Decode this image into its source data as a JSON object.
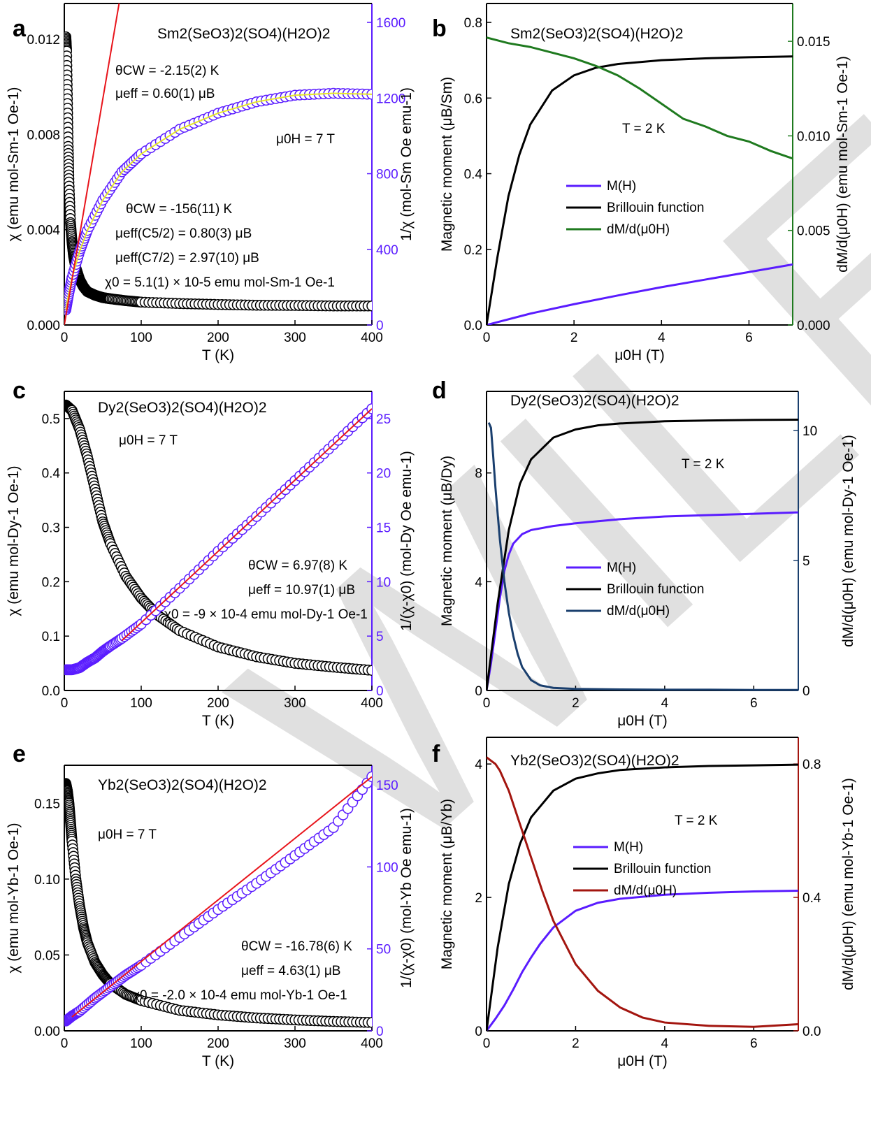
{
  "colors": {
    "chi": "#000000",
    "inv": "#5a1cff",
    "fit_red": "#e8141b",
    "fit_yellow": "#e6e62a",
    "sm_green": "#1f7a1f",
    "dy_navy": "#1a3f6e",
    "yb_red": "#a3150f",
    "watermark": "#c8c8c8"
  },
  "watermark_text": "WILEY-VCH",
  "chart_data": [
    {
      "panel": "a",
      "type": "scatter",
      "title": "Sm2(SeO3)2(SO4)(H2O)2",
      "xlabel": "T (K)",
      "xlim": [
        0,
        400
      ],
      "xticks": [
        0,
        100,
        200,
        300,
        400
      ],
      "ylabel_left": "χ (emu mol-Sm-1 Oe-1)",
      "ylim_left": [
        0,
        0.0135
      ],
      "yticks_left": [
        "0.000",
        "0.004",
        "0.008",
        "0.012"
      ],
      "ylabel_right": "1/χ (mol-Sm Oe emu-1)",
      "ylim_right": [
        0,
        1700
      ],
      "yticks_right": [
        "0",
        "400",
        "800",
        "1200",
        "1600"
      ],
      "annotations": [
        "μ0H = 7 T",
        "θCW = -2.15(2) K",
        "μeff = 0.60(1) μB",
        "θCW = -156(11) K",
        "μeff(C5/2) = 0.80(3) μB",
        "μeff(C7/2) = 2.97(10) μB",
        "χ0 = 5.1(1) × 10-5 emu mol-Sm-1 Oe-1"
      ],
      "series": [
        {
          "axis": "left",
          "x": [
            2,
            3,
            4,
            5,
            6,
            8,
            10,
            12,
            15,
            20,
            25,
            30,
            40,
            50,
            60,
            80,
            100,
            150,
            200,
            250,
            300,
            350,
            400
          ],
          "values": [
            0.0121,
            0.0115,
            0.0095,
            0.0075,
            0.006,
            0.0043,
            0.0035,
            0.0029,
            0.0024,
            0.0019,
            0.0016,
            0.0014,
            0.00125,
            0.00115,
            0.0011,
            0.00102,
            0.00096,
            0.0009,
            0.00086,
            0.00083,
            0.00082,
            0.0008,
            0.0008
          ]
        },
        {
          "axis": "right",
          "x": [
            2,
            5,
            10,
            20,
            30,
            50,
            75,
            100,
            150,
            200,
            250,
            300,
            350,
            400
          ],
          "values": [
            80,
            150,
            250,
            390,
            500,
            660,
            810,
            905,
            1035,
            1120,
            1180,
            1215,
            1225,
            1220
          ]
        },
        {
          "axis": "right",
          "kind": "fit",
          "x": [
            0,
            75
          ],
          "values": [
            0,
            1790
          ]
        }
      ]
    },
    {
      "panel": "b",
      "type": "line",
      "title": "Sm2(SeO3)2(SO4)(H2O)2",
      "xlabel": "μ0H (T)",
      "xlim": [
        0,
        7
      ],
      "xticks": [
        0,
        2,
        4,
        6
      ],
      "ylabel_left": "Magnetic moment (μB/Sm)",
      "ylim_left": [
        0,
        0.85
      ],
      "yticks_left": [
        "0.0",
        "0.2",
        "0.4",
        "0.6",
        "0.8"
      ],
      "ylabel_right": "dM/d(μ0H) (emu mol-Sm-1 Oe-1)",
      "ylim_right": [
        0,
        0.017
      ],
      "yticks_right": [
        "0.000",
        "0.005",
        "0.010",
        "0.015"
      ],
      "annotations": [
        "T = 2 K"
      ],
      "legend": [
        "M(H)",
        "Brillouin function",
        "dM/d(μ0H)"
      ],
      "series": [
        {
          "name": "M(H)",
          "axis": "left",
          "x": [
            0,
            1,
            2,
            3,
            4,
            5,
            6,
            7
          ],
          "values": [
            0,
            0.03,
            0.055,
            0.078,
            0.1,
            0.12,
            0.14,
            0.16
          ]
        },
        {
          "name": "Brillouin function",
          "axis": "left",
          "x": [
            0,
            0.25,
            0.5,
            0.75,
            1,
            1.5,
            2,
            2.5,
            3,
            4,
            5,
            6,
            7
          ],
          "values": [
            0,
            0.18,
            0.34,
            0.45,
            0.53,
            0.62,
            0.66,
            0.68,
            0.69,
            0.7,
            0.705,
            0.708,
            0.71
          ]
        },
        {
          "name": "dM/d(μ0H)",
          "axis": "right",
          "x": [
            0,
            0.5,
            1,
            1.5,
            2,
            2.5,
            3,
            3.5,
            4,
            4.5,
            5,
            5.5,
            6,
            6.5,
            7
          ],
          "values": [
            0.0152,
            0.0149,
            0.0147,
            0.0144,
            0.0141,
            0.0137,
            0.0132,
            0.0125,
            0.0117,
            0.0109,
            0.0105,
            0.01,
            0.0097,
            0.0092,
            0.0088
          ]
        }
      ]
    },
    {
      "panel": "c",
      "type": "scatter",
      "title": "Dy2(SeO3)2(SO4)(H2O)2",
      "xlabel": "T (K)",
      "xlim": [
        0,
        400
      ],
      "xticks": [
        0,
        100,
        200,
        300,
        400
      ],
      "ylabel_left": "χ (emu mol-Dy-1 Oe-1)",
      "ylim_left": [
        0,
        0.55
      ],
      "yticks_left": [
        "0.0",
        "0.1",
        "0.2",
        "0.3",
        "0.4",
        "0.5"
      ],
      "ylabel_right": "1/(χ-χ0) (mol-Dy Oe emu-1)",
      "ylim_right": [
        0,
        27.5
      ],
      "yticks_right": [
        "0",
        "5",
        "10",
        "15",
        "20",
        "25"
      ],
      "annotations": [
        "μ0H = 7 T",
        "θCW = 6.97(8) K",
        "μeff = 10.97(1) μB",
        "χ0 = -9 × 10-4 emu mol-Dy-1 Oe-1"
      ],
      "series": [
        {
          "axis": "left",
          "x": [
            2,
            10,
            20,
            30,
            40,
            50,
            60,
            80,
            100,
            120,
            150,
            200,
            250,
            300,
            350,
            400
          ],
          "values": [
            0.525,
            0.515,
            0.48,
            0.43,
            0.37,
            0.31,
            0.27,
            0.21,
            0.17,
            0.14,
            0.11,
            0.08,
            0.062,
            0.05,
            0.043,
            0.037
          ]
        },
        {
          "axis": "right",
          "x": [
            2,
            10,
            20,
            30,
            40,
            50,
            60,
            75,
            100,
            150,
            200,
            250,
            300,
            350,
            400
          ],
          "values": [
            1.9,
            1.9,
            2.1,
            2.6,
            3.0,
            3.6,
            4.1,
            4.8,
            6.1,
            9.4,
            12.8,
            16.0,
            19.3,
            22.6,
            25.9
          ]
        },
        {
          "axis": "right",
          "kind": "fit",
          "x": [
            75,
            400
          ],
          "values": [
            4.6,
            25.9
          ]
        }
      ]
    },
    {
      "panel": "d",
      "type": "line",
      "title": "Dy2(SeO3)2(SO4)(H2O)2",
      "xlabel": "μ0H (T)",
      "xlim": [
        0,
        7
      ],
      "xticks": [
        0,
        2,
        4,
        6
      ],
      "ylabel_left": "Magnetic moment (μB/Dy)",
      "ylim_left": [
        0,
        11
      ],
      "yticks_left": [
        "0",
        "4",
        "8"
      ],
      "ylabel_right": "dM/d(μ0H) (emu mol-Dy-1 Oe-1)",
      "ylim_right": [
        0,
        11.5
      ],
      "yticks_right": [
        "0",
        "5",
        "10"
      ],
      "annotations": [
        "T = 2 K"
      ],
      "legend": [
        "M(H)",
        "Brillouin function",
        "dM/d(μ0H)"
      ],
      "series": [
        {
          "name": "M(H)",
          "axis": "left",
          "x": [
            0,
            0.1,
            0.2,
            0.3,
            0.4,
            0.5,
            0.6,
            0.8,
            1,
            1.5,
            2,
            3,
            4,
            5,
            6,
            7
          ],
          "values": [
            0,
            1.0,
            2.2,
            3.4,
            4.4,
            5.0,
            5.4,
            5.75,
            5.9,
            6.05,
            6.15,
            6.3,
            6.4,
            6.45,
            6.5,
            6.55
          ]
        },
        {
          "name": "Brillouin function",
          "axis": "left",
          "x": [
            0,
            0.25,
            0.5,
            0.75,
            1,
            1.5,
            2,
            2.5,
            3,
            4,
            5,
            6,
            7
          ],
          "values": [
            0,
            3.2,
            5.9,
            7.6,
            8.5,
            9.3,
            9.6,
            9.75,
            9.82,
            9.9,
            9.93,
            9.95,
            9.96
          ]
        },
        {
          "name": "dM/d(μ0H)",
          "axis": "right",
          "x": [
            0.05,
            0.1,
            0.15,
            0.2,
            0.3,
            0.4,
            0.5,
            0.6,
            0.7,
            0.8,
            1,
            1.2,
            1.5,
            2,
            3,
            4,
            5,
            6,
            7
          ],
          "values": [
            10.3,
            10.1,
            9.0,
            7.8,
            5.8,
            4.2,
            3.0,
            2.1,
            1.4,
            0.9,
            0.4,
            0.2,
            0.1,
            0.06,
            0.04,
            0.03,
            0.03,
            0.02,
            0.02
          ]
        }
      ]
    },
    {
      "panel": "e",
      "type": "scatter",
      "title": "Yb2(SeO3)2(SO4)(H2O)2",
      "xlabel": "T (K)",
      "xlim": [
        0,
        400
      ],
      "xticks": [
        0,
        100,
        200,
        300,
        400
      ],
      "ylabel_left": "χ (emu mol-Yb-1 Oe-1)",
      "ylim_left": [
        0,
        0.175
      ],
      "yticks_left": [
        "0.00",
        "0.05",
        "0.10",
        "0.15"
      ],
      "ylabel_right": "1/(χ-χ0) (mol-Yb Oe emu-1)",
      "ylim_right": [
        0,
        162
      ],
      "yticks_right": [
        "0",
        "50",
        "100",
        "150"
      ],
      "annotations": [
        "μ0H = 7 T",
        "θCW = -16.78(6) K",
        "μeff = 4.63(1) μB",
        "χ0 = -2.0 × 10-4 emu mol-Yb-1 Oe-1"
      ],
      "series": [
        {
          "axis": "left",
          "x": [
            2,
            4,
            6,
            8,
            10,
            15,
            20,
            25,
            30,
            40,
            50,
            60,
            80,
            100,
            150,
            200,
            250,
            300,
            350,
            400
          ],
          "values": [
            0.163,
            0.158,
            0.15,
            0.138,
            0.125,
            0.1,
            0.082,
            0.068,
            0.058,
            0.045,
            0.037,
            0.031,
            0.024,
            0.02,
            0.0135,
            0.0105,
            0.0085,
            0.0072,
            0.0062,
            0.0055
          ]
        },
        {
          "axis": "right",
          "x": [
            2,
            10,
            20,
            40,
            60,
            80,
            100,
            150,
            200,
            250,
            300,
            350,
            400
          ],
          "values": [
            6,
            9,
            12,
            20,
            27,
            34,
            40,
            57,
            74,
            90,
            107,
            124,
            155
          ]
        },
        {
          "axis": "right",
          "kind": "fit",
          "x": [
            10,
            400
          ],
          "values": [
            8.5,
            155
          ]
        }
      ]
    },
    {
      "panel": "f",
      "type": "line",
      "title": "Yb2(SeO3)2(SO4)(H2O)2",
      "xlabel": "μ0H (T)",
      "xlim": [
        0,
        7
      ],
      "xticks": [
        0,
        2,
        4,
        6
      ],
      "ylabel_left": "Magnetic moment (μB/Yb)",
      "ylim_left": [
        0,
        4.4
      ],
      "yticks_left": [
        "0",
        "2",
        "4"
      ],
      "ylabel_right": "dM/d(μ0H) (emu mol-Yb-1 Oe-1)",
      "ylim_right": [
        0,
        0.88
      ],
      "yticks_right": [
        "0.0",
        "0.4",
        "0.8"
      ],
      "annotations": [
        "T = 2 K"
      ],
      "legend": [
        "M(H)",
        "Brillouin function",
        "dM/d(μ0H)"
      ],
      "series": [
        {
          "name": "M(H)",
          "axis": "left",
          "x": [
            0,
            0.2,
            0.4,
            0.6,
            0.8,
            1,
            1.2,
            1.5,
            2,
            2.5,
            3,
            4,
            5,
            6,
            7
          ],
          "values": [
            0,
            0.18,
            0.38,
            0.62,
            0.88,
            1.1,
            1.3,
            1.55,
            1.8,
            1.92,
            1.98,
            2.04,
            2.07,
            2.09,
            2.1
          ]
        },
        {
          "name": "Brillouin function",
          "axis": "left",
          "x": [
            0,
            0.25,
            0.5,
            0.75,
            1,
            1.5,
            2,
            2.5,
            3,
            4,
            5,
            6,
            7
          ],
          "values": [
            0,
            1.25,
            2.2,
            2.8,
            3.2,
            3.6,
            3.78,
            3.86,
            3.91,
            3.95,
            3.97,
            3.98,
            3.99
          ]
        },
        {
          "name": "dM/d(μ0H)",
          "axis": "right",
          "x": [
            0,
            0.1,
            0.2,
            0.3,
            0.5,
            0.75,
            1,
            1.25,
            1.5,
            2,
            2.5,
            3,
            3.5,
            4,
            5,
            6,
            7
          ],
          "values": [
            0.82,
            0.81,
            0.8,
            0.78,
            0.72,
            0.62,
            0.52,
            0.42,
            0.33,
            0.2,
            0.12,
            0.07,
            0.04,
            0.025,
            0.015,
            0.012,
            0.02
          ]
        }
      ]
    }
  ]
}
